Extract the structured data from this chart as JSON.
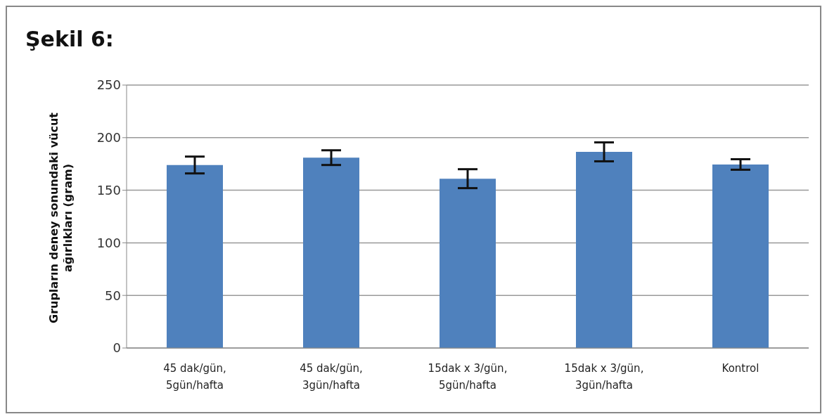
{
  "chart_data": {
    "type": "bar",
    "title": "Şekil 6:",
    "ylabel": "Grupların deney sonundaki vücut ağırlıkları (gram)",
    "categories": [
      "45 dak/gün, 5gün/hafta",
      "45 dak/gün, 3gün/hafta",
      "15dak x 3/gün, 5gün/hafta",
      "15dak x 3/gün, 3gün/hafta",
      "Kontrol"
    ],
    "values": [
      174,
      181,
      161,
      186.5,
      174.5
    ],
    "errors": [
      8,
      7,
      9,
      9,
      5
    ],
    "color": "#4f81bd",
    "ylim": [
      0,
      250
    ],
    "yticks": [
      0,
      50,
      100,
      150,
      200,
      250
    ],
    "grid": "y",
    "legend": false
  }
}
